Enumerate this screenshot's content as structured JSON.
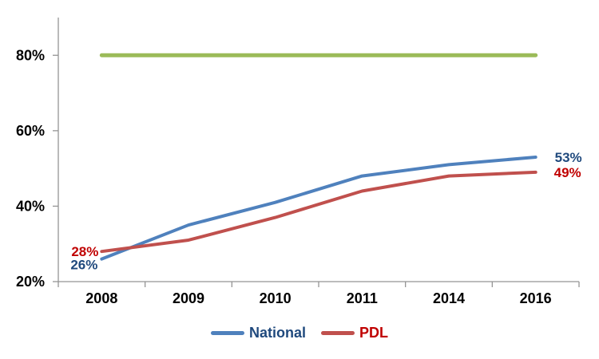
{
  "chart_data": {
    "type": "line",
    "x": [
      "2008",
      "2009",
      "2010",
      "2011",
      "2014",
      "2016"
    ],
    "series": [
      {
        "name": "National",
        "values": [
          26,
          35,
          41,
          48,
          51,
          53
        ],
        "color": "#4F81BD",
        "label_color": "#1F497D",
        "start_label": "26%",
        "end_label": "53%"
      },
      {
        "name": "PDL",
        "values": [
          28,
          31,
          37,
          44,
          48,
          49
        ],
        "color": "#C0504D",
        "label_color": "#C00000",
        "start_label": "28%",
        "end_label": "49%"
      },
      {
        "name": "",
        "values": [
          80,
          80,
          80,
          80,
          80,
          80
        ],
        "color": "#9BBB59",
        "in_legend": false
      }
    ],
    "title": "",
    "xlabel": "",
    "ylabel": "",
    "ylim": [
      20,
      90
    ],
    "yticks": [
      20,
      40,
      60,
      80
    ],
    "ytick_labels": [
      "20%",
      "40%",
      "60%",
      "80%"
    ],
    "grid": false,
    "legend_position": "bottom",
    "axis_color": "#949494",
    "text_color": "#000000",
    "background_color": "#FFFFFF"
  }
}
